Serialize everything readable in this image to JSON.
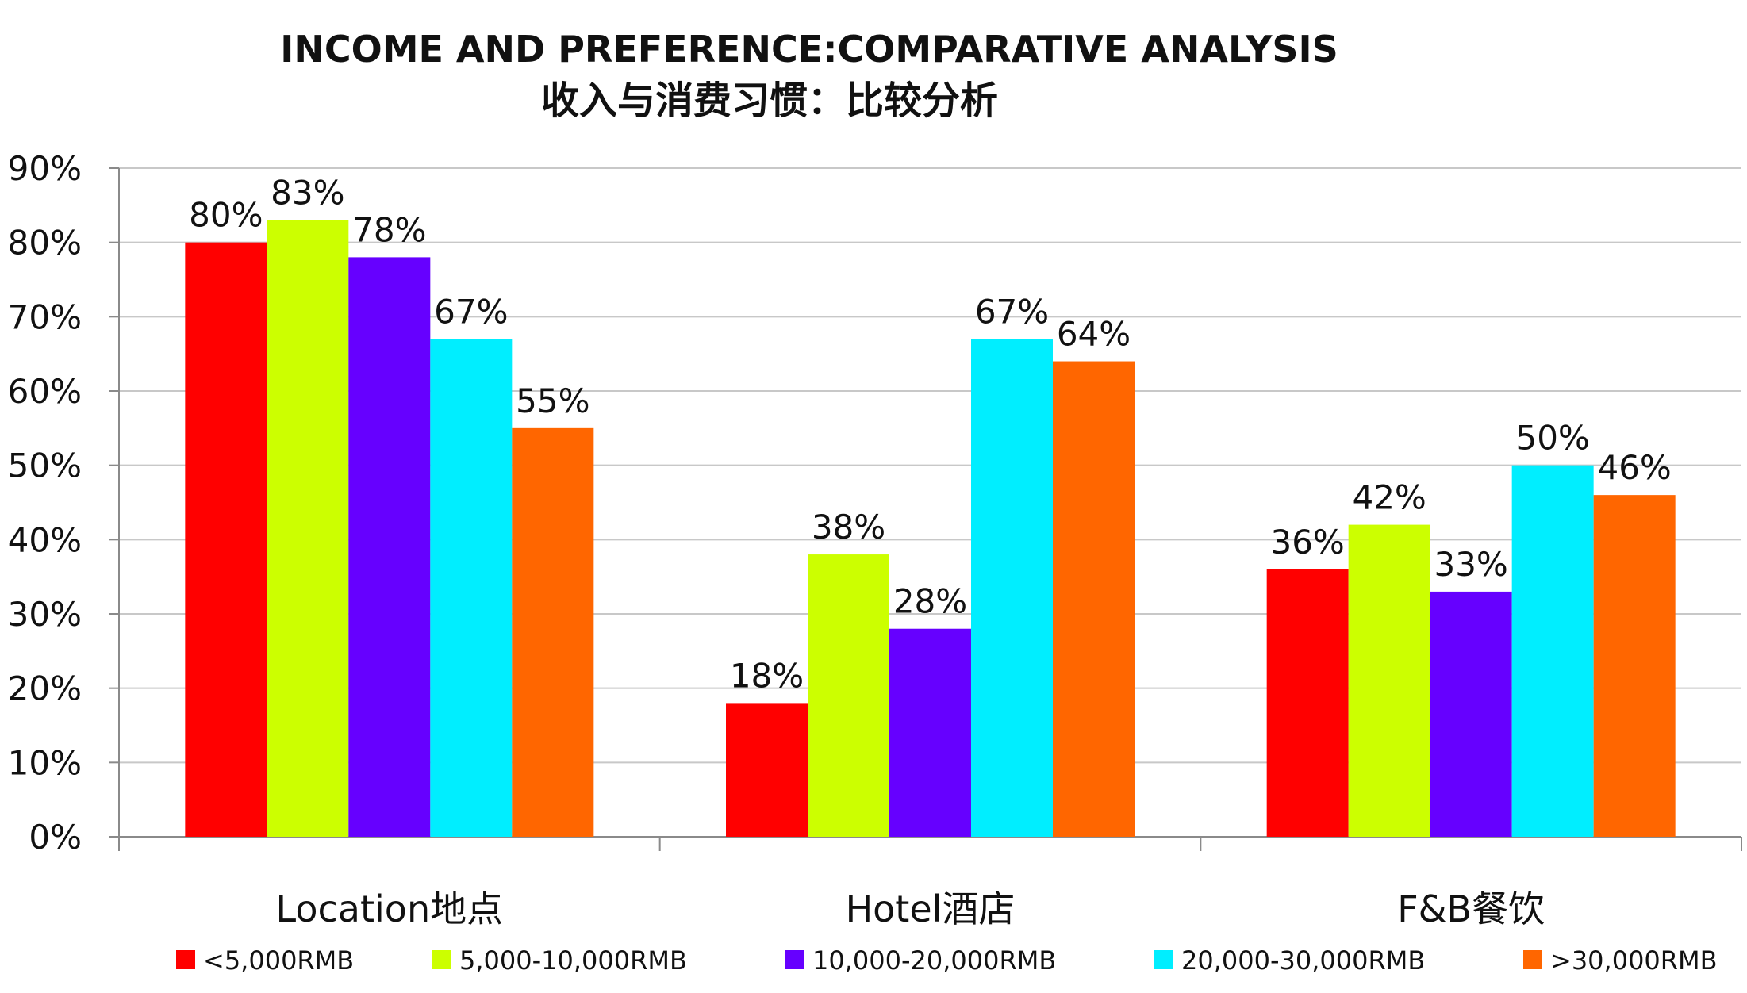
{
  "chart_data": {
    "type": "bar",
    "title": "INCOME AND PREFERENCE:COMPARATIVE ANALYSIS",
    "subtitle": "收入与消费习惯：比较分析",
    "xlabel": "",
    "ylabel": "",
    "ylim": [
      0,
      90
    ],
    "y_ticks": [
      "0%",
      "10%",
      "20%",
      "30%",
      "40%",
      "50%",
      "60%",
      "70%",
      "80%",
      "90%"
    ],
    "grid": true,
    "legend_position": "bottom",
    "categories": [
      "Location地点",
      "Hotel酒店",
      "F&B餐饮"
    ],
    "series": [
      {
        "name": "<5,000RMB",
        "color": "#ff0000",
        "values": [
          80,
          18,
          36
        ],
        "labels": [
          "80%",
          "18%",
          "36%"
        ]
      },
      {
        "name": "5,000-10,000RMB",
        "color": "#ccff00",
        "values": [
          83,
          38,
          42
        ],
        "labels": [
          "83%",
          "38%",
          "42%"
        ]
      },
      {
        "name": "10,000-20,000RMB",
        "color": "#6600ff",
        "values": [
          78,
          28,
          33
        ],
        "labels": [
          "78%",
          "28%",
          "33%"
        ]
      },
      {
        "name": "20,000-30,000RMB",
        "color": "#00eeff",
        "values": [
          67,
          67,
          50
        ],
        "labels": [
          "67%",
          "67%",
          "50%"
        ]
      },
      {
        "name": ">30,000RMB",
        "color": "#ff6600",
        "values": [
          55,
          64,
          46
        ],
        "labels": [
          "55%",
          "64%",
          "46%"
        ]
      }
    ]
  }
}
